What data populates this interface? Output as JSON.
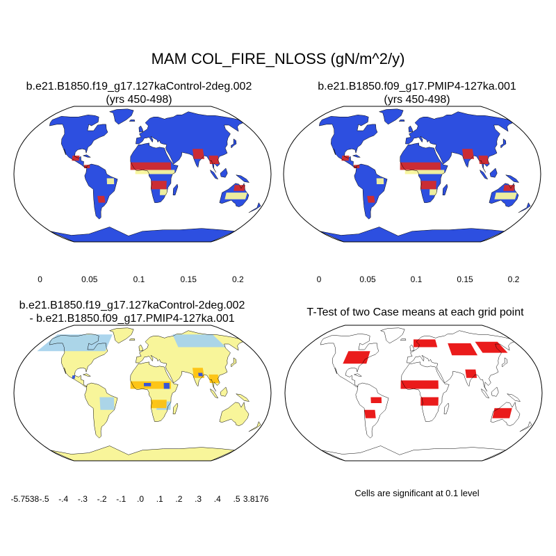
{
  "title": "MAM COL_FIRE_NLOSS (gN/m^2/y)",
  "panels": [
    {
      "id": "control",
      "title_lines": [
        "b.e21.B1850.f19_g17.127kaControl-2deg.002",
        "(yrs 450-498)"
      ],
      "fill": "absolute",
      "colorbar": {
        "colors": [
          "#3a1ef5",
          "#2d4fe0",
          "#2c86ee",
          "#1bb6f0",
          "#a6d3ec",
          "#f8f59a",
          "#fdc20f",
          "#f57a0f",
          "#e90f0f",
          "#d42a2a"
        ],
        "labels": [
          "0",
          "0.05",
          "0.1",
          "0.15",
          "0.2"
        ]
      }
    },
    {
      "id": "pmip4",
      "title_lines": [
        "b.e21.B1850.f09_g17.PMIP4-127ka.001",
        "(yrs 450-498)"
      ],
      "fill": "absolute",
      "colorbar": {
        "colors": [
          "#3a1ef5",
          "#2d4fe0",
          "#2c86ee",
          "#1bb6f0",
          "#a6d3ec",
          "#f8f59a",
          "#fdc20f",
          "#f57a0f",
          "#e90f0f",
          "#d42a2a"
        ],
        "labels": [
          "0",
          "0.05",
          "0.1",
          "0.15",
          "0.2"
        ]
      }
    },
    {
      "id": "difference",
      "title_lines": [
        "b.e21.B1850.f19_g17.127kaControl-2deg.002",
        "- b.e21.B1850.f09_g17.PMIP4-127ka.001"
      ],
      "fill": "difference",
      "colorbar": {
        "colors": [
          "#3a1ef5",
          "#2d4fe0",
          "#2c6fee",
          "#2c8ef0",
          "#1bb6f0",
          "#a6d3ec",
          "#f8f59a",
          "#fde06a",
          "#fdc20f",
          "#f8a00f",
          "#f26a0f",
          "#e90f0f",
          "#d42a2a"
        ],
        "labels": [
          "-5.7538",
          "-.5",
          "-.4",
          "-.3",
          "-.2",
          "-.1",
          ".0",
          ".1",
          ".2",
          ".3",
          ".4",
          ".5",
          "3.8176"
        ]
      }
    },
    {
      "id": "ttest",
      "title_lines": [
        "T-Test of two Case means at each grid point"
      ],
      "fill": "significance",
      "note": "Cells are significant at 0.1 level"
    }
  ],
  "colors": {
    "land_low": "#2d4fe0",
    "ocean": "#ffffff",
    "coast": "#000000",
    "diff_neutral": "#f8f59a",
    "diff_light": "#a6d3ec",
    "significant": "#e90f0f",
    "high_fire": "#d42a2a"
  },
  "icons": [
    "robinson-map"
  ]
}
